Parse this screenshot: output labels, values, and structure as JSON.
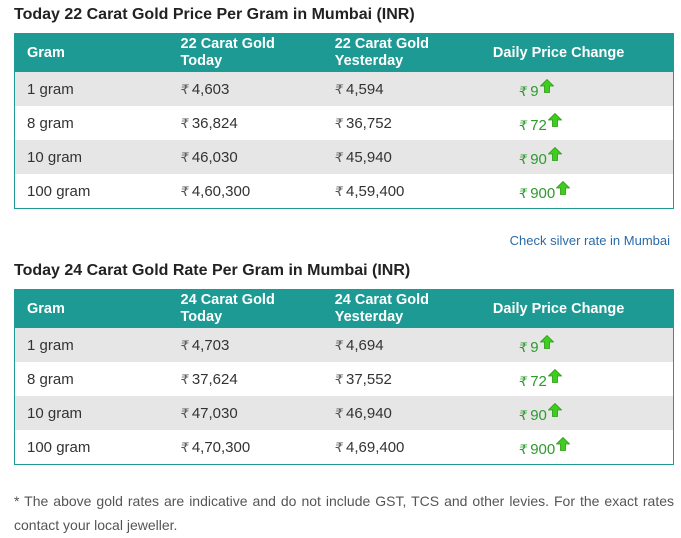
{
  "tables": [
    {
      "title": "Today 22 Carat Gold Price Per Gram in Mumbai (INR)",
      "headers": {
        "gram": "Gram",
        "today_line1": "22 Carat Gold",
        "today_line2": "Today",
        "yesterday_line1": "22 Carat Gold",
        "yesterday_line2": "Yesterday",
        "change": "Daily Price Change"
      },
      "rows": [
        {
          "gram": "1 gram",
          "today": "4,603",
          "yesterday": "4,594",
          "change": "9"
        },
        {
          "gram": "8 gram",
          "today": "36,824",
          "yesterday": "36,752",
          "change": "72"
        },
        {
          "gram": "10 gram",
          "today": "46,030",
          "yesterday": "45,940",
          "change": "90"
        },
        {
          "gram": "100 gram",
          "today": "4,60,300",
          "yesterday": "4,59,400",
          "change": "900"
        }
      ]
    },
    {
      "title": "Today 24 Carat Gold Rate Per Gram in Mumbai (INR)",
      "headers": {
        "gram": "Gram",
        "today_line1": "24 Carat Gold",
        "today_line2": "Today",
        "yesterday_line1": "24 Carat Gold",
        "yesterday_line2": "Yesterday",
        "change": "Daily Price Change"
      },
      "rows": [
        {
          "gram": "1 gram",
          "today": "4,703",
          "yesterday": "4,694",
          "change": "9"
        },
        {
          "gram": "8 gram",
          "today": "37,624",
          "yesterday": "37,552",
          "change": "72"
        },
        {
          "gram": "10 gram",
          "today": "47,030",
          "yesterday": "46,940",
          "change": "90"
        },
        {
          "gram": "100 gram",
          "today": "4,70,300",
          "yesterday": "4,69,400",
          "change": "900"
        }
      ]
    }
  ],
  "currency_symbol": "₹",
  "silver_link": "Check silver rate in Mumbai",
  "footnote": "* The above gold rates are indicative and do not include GST, TCS and other levies. For the exact rates contact your local jeweller.",
  "icons": {
    "change_indicator": "up-arrow-icon"
  },
  "colors": {
    "header_bg": "#1e9a95",
    "row_alt_bg": "#e6e6e6",
    "price_up": "#2e9a2e",
    "arrow_fill": "#3ecf1e",
    "link": "#2a6aa8"
  }
}
